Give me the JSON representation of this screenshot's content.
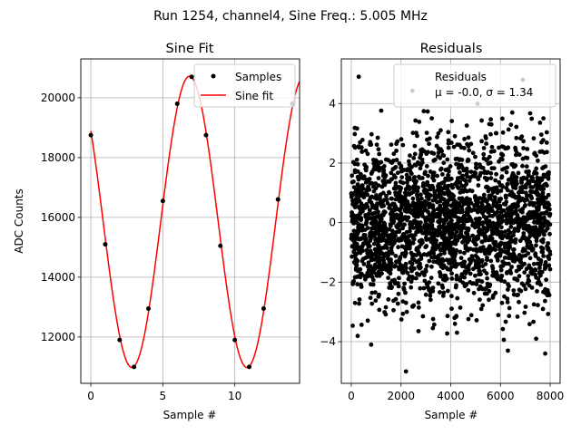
{
  "figure": {
    "suptitle": "Run 1254, channel4, Sine Freq.: 5.005 MHz"
  },
  "chart_data": [
    {
      "type": "line",
      "title": "Sine Fit",
      "xlabel": "Sample #",
      "ylabel": "ADC Counts",
      "xlim": [
        -0.7,
        14.5
      ],
      "ylim": [
        10450,
        21300
      ],
      "xticks": [
        0,
        5,
        10
      ],
      "yticks": [
        12000,
        14000,
        16000,
        18000,
        20000
      ],
      "grid": true,
      "legend": {
        "loc": "upper right",
        "entries": [
          "Samples",
          "Sine fit"
        ]
      },
      "samples": {
        "name": "Samples",
        "color": "#000000",
        "x": [
          0,
          1,
          2,
          3,
          4,
          5,
          6,
          7,
          8,
          9,
          10,
          11,
          12,
          13,
          14
        ],
        "y": [
          18750,
          15100,
          11900,
          11000,
          12950,
          16550,
          19800,
          20700,
          18750,
          15050,
          11900,
          11000,
          12950,
          16600,
          19800
        ]
      },
      "fit": {
        "name": "Sine fit",
        "color": "#ff0000",
        "offset": 15850,
        "amplitude": 4870,
        "period_samples": 7.992,
        "peak_at_sample": 6.85,
        "x_range": [
          0,
          14.5
        ]
      }
    },
    {
      "type": "scatter",
      "title": "Residuals",
      "xlabel": "Sample #",
      "ylabel": "",
      "xlim": [
        -400,
        8400
      ],
      "ylim": [
        -5.4,
        5.5
      ],
      "xticks": [
        0,
        2000,
        4000,
        6000,
        8000
      ],
      "yticks": [
        -4,
        -2,
        0,
        2,
        4
      ],
      "grid": true,
      "legend": {
        "loc": "upper right",
        "entries": [
          "Residuals",
          "μ = -0.0, σ = 1.34"
        ]
      },
      "series": [
        {
          "name": "Residuals",
          "color": "#000000",
          "n_points": 8000,
          "mean": -0.0,
          "sigma": 1.34,
          "x_range": [
            0,
            7999
          ],
          "notable_points": [
            [
              300,
              4.9
            ],
            [
              2200,
              -5.0
            ],
            [
              6900,
              4.8
            ],
            [
              7800,
              -4.4
            ],
            [
              800,
              -4.1
            ],
            [
              6300,
              -4.3
            ]
          ]
        }
      ]
    }
  ]
}
